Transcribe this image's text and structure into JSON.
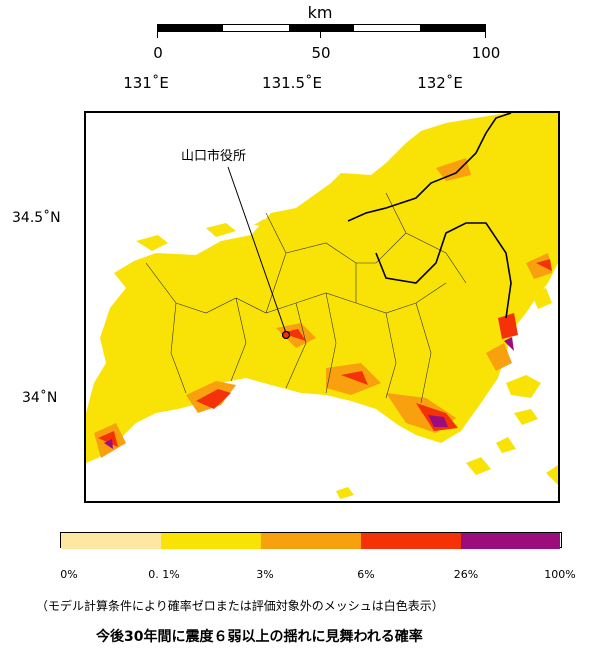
{
  "scale_bar": {
    "unit": "km",
    "ticks": [
      "0",
      "50",
      "100"
    ],
    "colors": [
      "#000000",
      "#ffffff",
      "#000000",
      "#ffffff",
      "#000000"
    ]
  },
  "longitude_labels": [
    "131˚E",
    "131.5˚E",
    "132˚E"
  ],
  "latitude_labels": [
    "34.5˚N",
    "34˚N"
  ],
  "city_label": "山口市役所",
  "legend": {
    "classes": [
      {
        "label": "0%",
        "color": "#fde7a1"
      },
      {
        "label": "0. 1%",
        "color": "#f9e306"
      },
      {
        "label": "3%",
        "color": "#f8a00d"
      },
      {
        "label": "6%",
        "color": "#f53108"
      },
      {
        "label": "26%",
        "color": "#9b0c7d"
      },
      {
        "label": "100%",
        "color": null
      }
    ]
  },
  "note": "（モデル計算条件により確率ゼロまたは評価対象外のメッシュは白色表示）",
  "caption": "今後30年間に震度６弱以上の揺れに見舞われる確率",
  "colors": {
    "land_low": "#f9e306",
    "land_mid": "#f8a00d",
    "land_high": "#f53108",
    "land_top": "#9b0c7d",
    "sea": "#ffffff"
  }
}
